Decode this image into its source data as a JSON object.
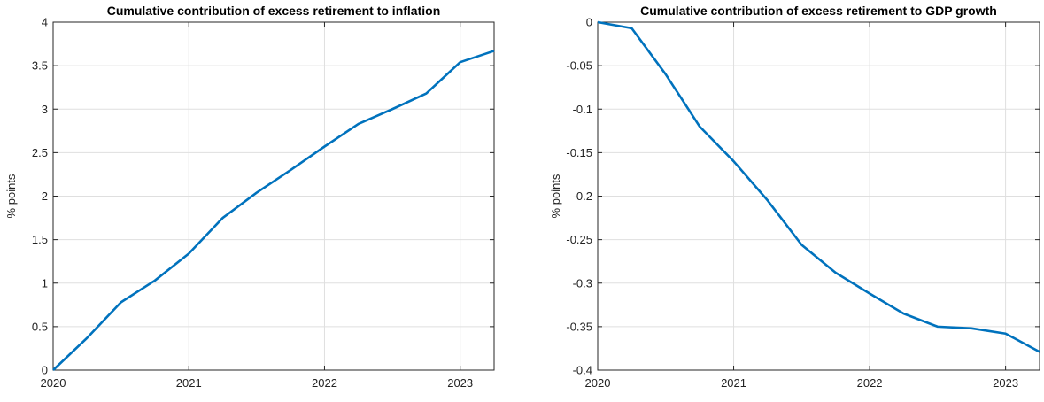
{
  "chart_data": [
    {
      "type": "line",
      "title": "Cumulative contribution of excess retirement to inflation",
      "y_label": "% points",
      "x": [
        2020,
        2020.25,
        2020.5,
        2020.75,
        2021,
        2021.25,
        2021.5,
        2021.75,
        2022,
        2022.25,
        2022.5,
        2022.75,
        2023,
        2023.25
      ],
      "series": [
        {
          "name": "inflation",
          "color": "#0072bd",
          "values": [
            0,
            0.37,
            0.78,
            1.03,
            1.34,
            1.75,
            2.04,
            2.3,
            2.57,
            2.83,
            3.0,
            3.18,
            3.54,
            3.67
          ]
        }
      ],
      "xlim": [
        2020,
        2023.25
      ],
      "xticks": [
        2020,
        2021,
        2022,
        2023
      ],
      "ylim": [
        0,
        4
      ],
      "yticks": [
        0,
        0.5,
        1,
        1.5,
        2,
        2.5,
        3,
        3.5,
        4
      ],
      "grid": true
    },
    {
      "type": "line",
      "title": "Cumulative contribution of excess retirement to GDP growth",
      "y_label": "% points",
      "x": [
        2020,
        2020.25,
        2020.5,
        2020.75,
        2021,
        2021.25,
        2021.5,
        2021.75,
        2022,
        2022.25,
        2022.5,
        2022.75,
        2023,
        2023.25
      ],
      "series": [
        {
          "name": "GDP growth",
          "color": "#0072bd",
          "values": [
            0,
            -0.007,
            -0.06,
            -0.12,
            -0.16,
            -0.205,
            -0.256,
            -0.288,
            -0.312,
            -0.335,
            -0.35,
            -0.352,
            -0.358,
            -0.379
          ]
        }
      ],
      "xlim": [
        2020,
        2023.25
      ],
      "xticks": [
        2020,
        2021,
        2022,
        2023
      ],
      "ylim": [
        -0.4,
        0
      ],
      "yticks": [
        -0.4,
        -0.35,
        -0.3,
        -0.25,
        -0.2,
        -0.15,
        -0.1,
        -0.05,
        0
      ],
      "grid": true
    }
  ]
}
